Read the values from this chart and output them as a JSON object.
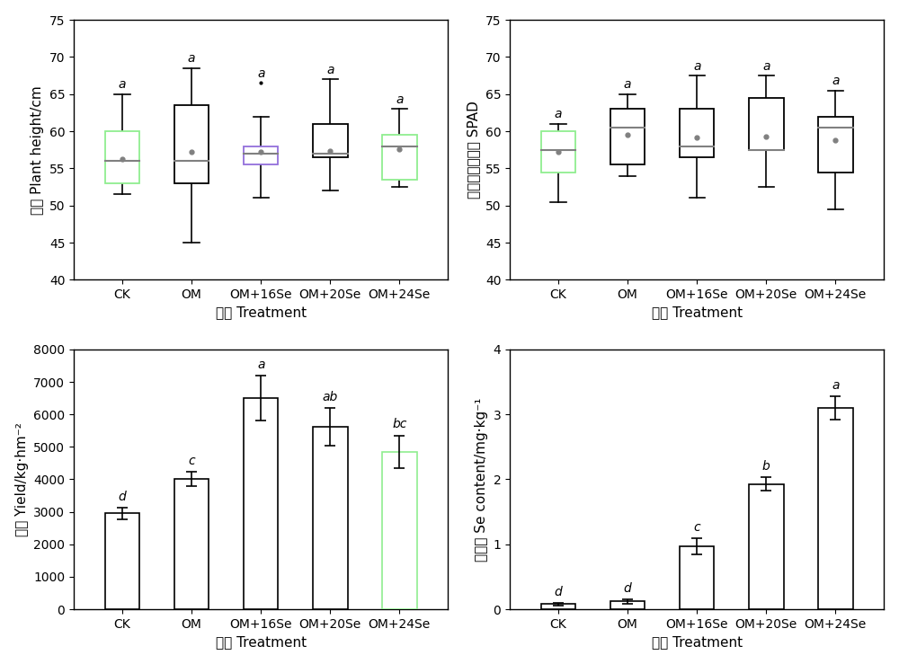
{
  "categories": [
    "CK",
    "OM",
    "OM+16Se",
    "OM+20Se",
    "OM+24Se"
  ],
  "ph_data": {
    "whislo": [
      51.5,
      45.0,
      51.0,
      52.0,
      52.5
    ],
    "q1": [
      53.0,
      53.0,
      55.5,
      56.5,
      53.5
    ],
    "med": [
      56.0,
      56.0,
      57.0,
      57.0,
      58.0
    ],
    "q3": [
      60.0,
      63.5,
      58.0,
      61.0,
      59.5
    ],
    "whishi": [
      65.0,
      68.5,
      62.0,
      67.0,
      63.0
    ],
    "means": [
      56.2,
      57.2,
      57.2,
      57.3,
      57.6
    ],
    "fliers": [
      [
        null
      ],
      [
        null
      ],
      [
        66.5
      ],
      [
        null
      ],
      [
        null
      ]
    ],
    "box_colors": [
      "#90ee90",
      "#000000",
      "#9370db",
      "#000000",
      "#90ee90"
    ],
    "letters": [
      "a",
      "a",
      "a",
      "a",
      "a"
    ],
    "ylabel_cn": "株高",
    "ylabel_en": "Plant height/cm",
    "ylim": [
      40,
      75
    ],
    "yticks": [
      40,
      45,
      50,
      55,
      60,
      65,
      70,
      75
    ]
  },
  "spad_data": {
    "whislo": [
      50.5,
      54.0,
      51.0,
      52.5,
      49.5
    ],
    "q1": [
      54.5,
      55.5,
      56.5,
      57.5,
      54.5
    ],
    "med": [
      57.5,
      60.5,
      58.0,
      57.5,
      60.5
    ],
    "q3": [
      60.0,
      63.0,
      63.0,
      64.5,
      62.0
    ],
    "whishi": [
      61.0,
      65.0,
      67.5,
      67.5,
      65.5
    ],
    "means": [
      57.2,
      59.5,
      59.2,
      59.3,
      58.8
    ],
    "fliers": [
      [
        null
      ],
      [
        null
      ],
      [
        null
      ],
      [
        null
      ],
      [
        null
      ]
    ],
    "box_colors": [
      "#90ee90",
      "#000000",
      "#000000",
      "#000000",
      "#000000"
    ],
    "letters": [
      "a",
      "a",
      "a",
      "a",
      "a"
    ],
    "ylabel_cn": "叶绿素相对含量",
    "ylabel_en": "SPAD",
    "ylim": [
      40,
      75
    ],
    "yticks": [
      40,
      45,
      50,
      55,
      60,
      65,
      70,
      75
    ]
  },
  "yield_data": {
    "values": [
      2950,
      4020,
      6500,
      5620,
      4850
    ],
    "errors": [
      170,
      220,
      700,
      580,
      500
    ],
    "bar_colors": [
      "#ffffff",
      "#ffffff",
      "#ffffff",
      "#ffffff",
      "#ffffff"
    ],
    "bar_edge_colors": [
      "#000000",
      "#000000",
      "#000000",
      "#000000",
      "#90ee90"
    ],
    "letters": [
      "d",
      "c",
      "a",
      "ab",
      "bc"
    ],
    "ylabel_cn": "产量",
    "ylabel_en": "Yield/kg·hm⁻²",
    "ylim": [
      0,
      8000
    ],
    "yticks": [
      0,
      1000,
      2000,
      3000,
      4000,
      5000,
      6000,
      7000,
      8000
    ]
  },
  "se_data": {
    "values": [
      0.08,
      0.12,
      0.97,
      1.93,
      3.1
    ],
    "errors": [
      0.02,
      0.03,
      0.12,
      0.1,
      0.18
    ],
    "bar_colors": [
      "#ffffff",
      "#ffffff",
      "#ffffff",
      "#ffffff",
      "#ffffff"
    ],
    "bar_edge_colors": [
      "#000000",
      "#000000",
      "#000000",
      "#000000",
      "#000000"
    ],
    "letters": [
      "d",
      "d",
      "c",
      "b",
      "a"
    ],
    "ylabel_cn": "硒含量",
    "ylabel_en": "Se content/mg·kg⁻¹",
    "ylim": [
      0,
      4
    ],
    "yticks": [
      0,
      1,
      2,
      3,
      4
    ]
  },
  "xlabel_cn": "处理",
  "xlabel_en": "Treatment",
  "box_facecolor": "#ffffff",
  "median_color": "#808080",
  "mean_color": "#808080",
  "error_color": "#000000",
  "letter_fontsize": 10,
  "axis_fontsize": 11,
  "tick_fontsize": 10,
  "ylabel_fontsize": 11,
  "figure_bg": "#ffffff"
}
